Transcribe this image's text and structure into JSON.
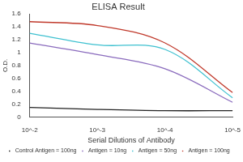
{
  "chart_data": {
    "type": "line",
    "title": "ELISA Result",
    "x_label": "Serial Dilutions of Antibody",
    "y_label": "O.D.",
    "categories": [
      "10^-2",
      "10^-3",
      "10^-4",
      "10^-5"
    ],
    "series": [
      {
        "name": "Control Antigen = 100ng",
        "color": "#222222",
        "values": [
          0.15,
          0.12,
          0.1,
          0.1
        ]
      },
      {
        "name": "Antigen = 10ng",
        "color": "#8a6bbd",
        "values": [
          1.15,
          0.97,
          0.75,
          0.23
        ]
      },
      {
        "name": "Antigen = 50ng",
        "color": "#3fc1d0",
        "values": [
          1.3,
          1.12,
          1.05,
          0.3
        ]
      },
      {
        "name": "Antigen = 100ng",
        "color": "#c0392b",
        "values": [
          1.48,
          1.42,
          1.15,
          0.38
        ]
      }
    ],
    "ylim": [
      0,
      1.6
    ],
    "yticks": [
      0,
      0.2,
      0.4,
      0.6,
      0.8,
      1,
      1.2,
      1.4,
      1.6
    ],
    "grid": false,
    "legend": "bottom"
  }
}
